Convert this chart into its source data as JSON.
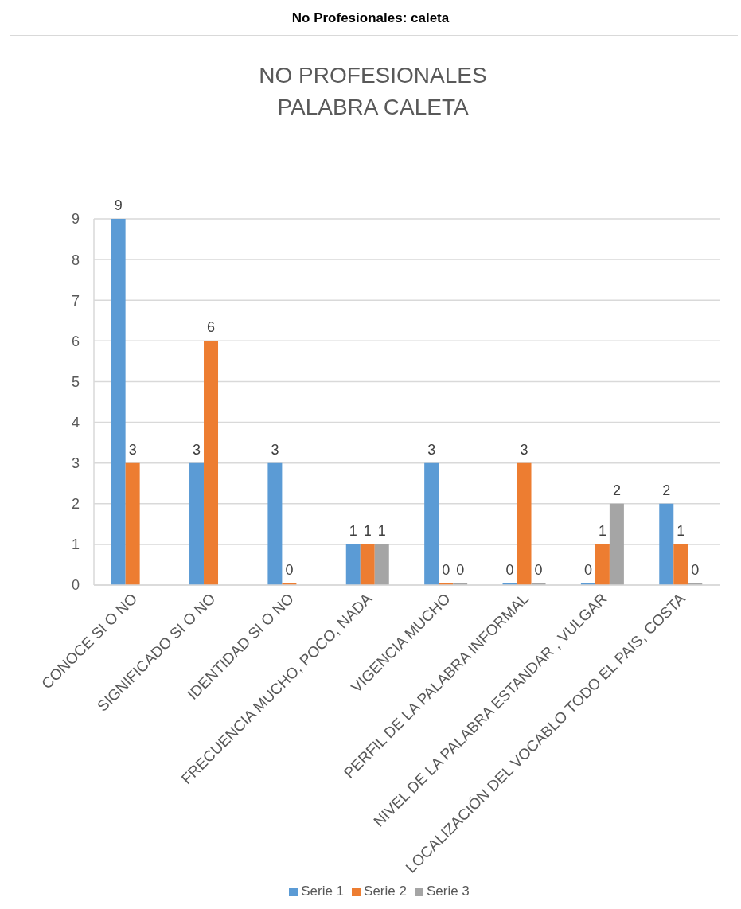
{
  "chart_data": {
    "type": "bar",
    "title": "No Profesionales: caleta",
    "subtitle": "NO PROFESIONALES\nPALABRA CALETA",
    "categories": [
      "CONOCE SI O NO",
      "SIGNIFICADO SI O NO",
      "IDENTIDAD SI O NO",
      "FRECUENCIA MUCHO, POCO, NADA",
      "VIGENCIA MUCHO",
      "PERFIL DE LA PALABRA INFORMAL",
      "NIVEL DE LA PALABRA ESTANDAR , VULGAR",
      "LOCALIZACIÓN DEL VOCABLO TODO EL PAIS, COSTA"
    ],
    "series": [
      {
        "name": "Serie 1",
        "color": "#5b9bd5",
        "values": [
          9,
          3,
          3,
          1,
          3,
          0,
          0,
          2
        ]
      },
      {
        "name": "Serie 2",
        "color": "#ed7d31",
        "values": [
          3,
          6,
          0,
          1,
          0,
          3,
          1,
          1
        ]
      },
      {
        "name": "Serie 3",
        "color": "#a5a5a5",
        "values": [
          null,
          null,
          null,
          1,
          0,
          0,
          2,
          0
        ]
      }
    ],
    "ylim": [
      0,
      9
    ],
    "yticks": [
      0,
      1,
      2,
      3,
      4,
      5,
      6,
      7,
      8,
      9
    ],
    "grid": "y",
    "legend": "bottom",
    "data_labels": true
  }
}
